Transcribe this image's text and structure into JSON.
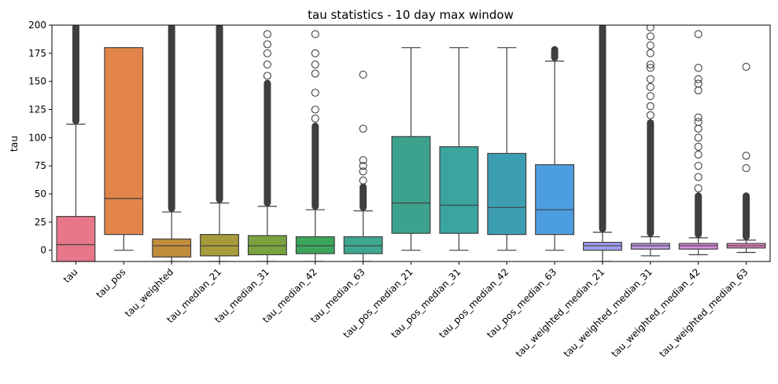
{
  "chart_data": {
    "type": "box",
    "title": "tau statistics - 10 day max window",
    "xlabel": "",
    "ylabel": "tau",
    "ylim": [
      -10,
      200
    ],
    "yticks": [
      0,
      25,
      50,
      75,
      100,
      125,
      150,
      175,
      200
    ],
    "grid": false,
    "legend": "none",
    "categories": [
      "tau",
      "tau_pos",
      "tau_weighted",
      "tau_median_21",
      "tau_median_31",
      "tau_median_42",
      "tau_median_63",
      "tau_pos_median_21",
      "tau_pos_median_31",
      "tau_pos_median_42",
      "tau_pos_median_63",
      "tau_weighted_median_21",
      "tau_weighted_median_31",
      "tau_weighted_median_42",
      "tau_weighted_median_63"
    ],
    "colors": [
      "#e8778a",
      "#e2844a",
      "#c08d3c",
      "#a89b3c",
      "#7aa340",
      "#3ca55c",
      "#3da78f",
      "#3ca28e",
      "#3aa49f",
      "#3d9eb3",
      "#4d9ee0",
      "#9d9ef0",
      "#c39ce8",
      "#d98ce0",
      "#e888c4"
    ],
    "boxes": [
      {
        "whislo": -10,
        "q1": -10,
        "median": 5,
        "q3": 30,
        "whishi": 112,
        "fliers_dense": [
          112,
          200
        ],
        "fliers": []
      },
      {
        "whislo": 0,
        "q1": 14,
        "median": 46,
        "q3": 180,
        "whishi": 180,
        "fliers_dense": null,
        "fliers": []
      },
      {
        "whislo": -10,
        "q1": -6,
        "median": 4,
        "q3": 10,
        "whishi": 34,
        "fliers_dense": [
          34,
          200
        ],
        "fliers": []
      },
      {
        "whislo": -10,
        "q1": -5,
        "median": 4,
        "q3": 14,
        "whishi": 42,
        "fliers_dense": [
          42,
          200
        ],
        "fliers": []
      },
      {
        "whislo": -10,
        "q1": -4,
        "median": 4,
        "q3": 13,
        "whishi": 39,
        "fliers_dense": [
          39,
          150
        ],
        "fliers": [
          155,
          165,
          175,
          183,
          192
        ]
      },
      {
        "whislo": -10,
        "q1": -3,
        "median": 4,
        "q3": 12,
        "whishi": 36,
        "fliers_dense": [
          36,
          112
        ],
        "fliers": [
          117,
          125,
          140,
          157,
          165,
          175,
          192
        ]
      },
      {
        "whislo": -10,
        "q1": -3,
        "median": 4,
        "q3": 12,
        "whishi": 35,
        "fliers_dense": [
          35,
          58
        ],
        "fliers": [
          62,
          70,
          75,
          80,
          108,
          156
        ]
      },
      {
        "whislo": 0,
        "q1": 15,
        "median": 42,
        "q3": 101,
        "whishi": 180,
        "fliers_dense": null,
        "fliers": []
      },
      {
        "whislo": 0,
        "q1": 15,
        "median": 40,
        "q3": 92,
        "whishi": 180,
        "fliers_dense": null,
        "fliers": []
      },
      {
        "whislo": 0,
        "q1": 14,
        "median": 38,
        "q3": 86,
        "whishi": 180,
        "fliers_dense": null,
        "fliers": []
      },
      {
        "whislo": 0,
        "q1": 14,
        "median": 36,
        "q3": 76,
        "whishi": 168,
        "fliers_dense": [
          168,
          180
        ],
        "fliers": []
      },
      {
        "whislo": -10,
        "q1": 0,
        "median": 4,
        "q3": 7,
        "whishi": 16,
        "fliers_dense": [
          16,
          200
        ],
        "fliers": []
      },
      {
        "whislo": -5,
        "q1": 1,
        "median": 4,
        "q3": 6,
        "whishi": 12,
        "fliers_dense": [
          12,
          115
        ],
        "fliers": [
          120,
          128,
          137,
          145,
          152,
          162,
          165,
          175,
          182,
          190,
          198
        ]
      },
      {
        "whislo": -4,
        "q1": 1,
        "median": 4,
        "q3": 6,
        "whishi": 11,
        "fliers_dense": [
          11,
          50
        ],
        "fliers": [
          55,
          65,
          75,
          85,
          92,
          100,
          108,
          114,
          118,
          142,
          148,
          152,
          162,
          192
        ]
      },
      {
        "whislo": -2,
        "q1": 2,
        "median": 4,
        "q3": 6,
        "whishi": 9,
        "fliers_dense": [
          9,
          50
        ],
        "fliers": [
          73,
          84,
          163
        ]
      }
    ]
  }
}
